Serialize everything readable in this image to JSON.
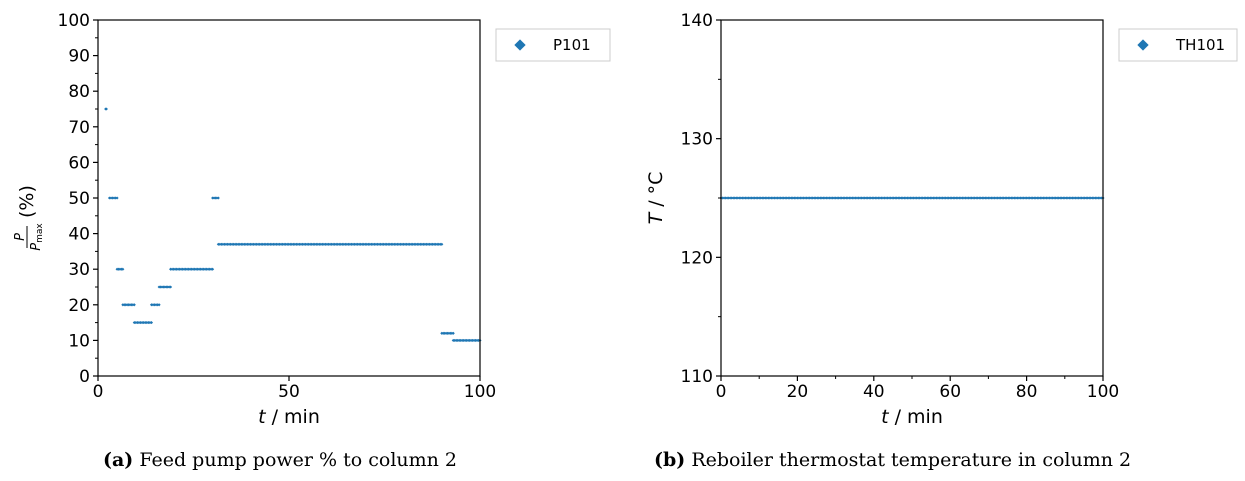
{
  "chart_data": [
    {
      "type": "scatter",
      "panel_label": "(a)",
      "caption": "Feed pump power % to column 2",
      "xlabel": "t / min",
      "ylabel": "P/P_max (%)",
      "xlim": [
        0,
        100
      ],
      "ylim": [
        0,
        100
      ],
      "x_ticks": [
        0,
        50,
        100
      ],
      "y_ticks": [
        0,
        10,
        20,
        30,
        40,
        50,
        60,
        70,
        80,
        90,
        100
      ],
      "grid": false,
      "legend_position": "outside-right-top",
      "series": [
        {
          "name": "P101",
          "color": "#1f77b4",
          "marker": "diamond",
          "segments": [
            {
              "x_start": 2,
              "x_end": 2.2,
              "y": 75
            },
            {
              "x_start": 3,
              "x_end": 5,
              "y": 50
            },
            {
              "x_start": 5,
              "x_end": 6.5,
              "y": 30
            },
            {
              "x_start": 6.5,
              "x_end": 9.5,
              "y": 20
            },
            {
              "x_start": 9.5,
              "x_end": 14,
              "y": 15
            },
            {
              "x_start": 14,
              "x_end": 16,
              "y": 20
            },
            {
              "x_start": 16,
              "x_end": 19,
              "y": 25
            },
            {
              "x_start": 19,
              "x_end": 30,
              "y": 30
            },
            {
              "x_start": 30,
              "x_end": 31.5,
              "y": 50
            },
            {
              "x_start": 31.5,
              "x_end": 90,
              "y": 37
            },
            {
              "x_start": 90,
              "x_end": 93,
              "y": 12
            },
            {
              "x_start": 93,
              "x_end": 100,
              "y": 10
            }
          ]
        }
      ]
    },
    {
      "type": "scatter",
      "panel_label": "(b)",
      "caption": "Reboiler thermostat temperature in column 2",
      "xlabel": "t / min",
      "ylabel": "T / °C",
      "xlim": [
        0,
        100
      ],
      "ylim": [
        110,
        140
      ],
      "x_ticks": [
        0,
        20,
        40,
        60,
        80,
        100
      ],
      "y_ticks": [
        110,
        120,
        130,
        140
      ],
      "grid": false,
      "legend_position": "outside-right-top",
      "series": [
        {
          "name": "TH101",
          "color": "#1f77b4",
          "marker": "diamond",
          "segments": [
            {
              "x_start": 0,
              "x_end": 100,
              "y": 125
            }
          ]
        }
      ]
    }
  ]
}
